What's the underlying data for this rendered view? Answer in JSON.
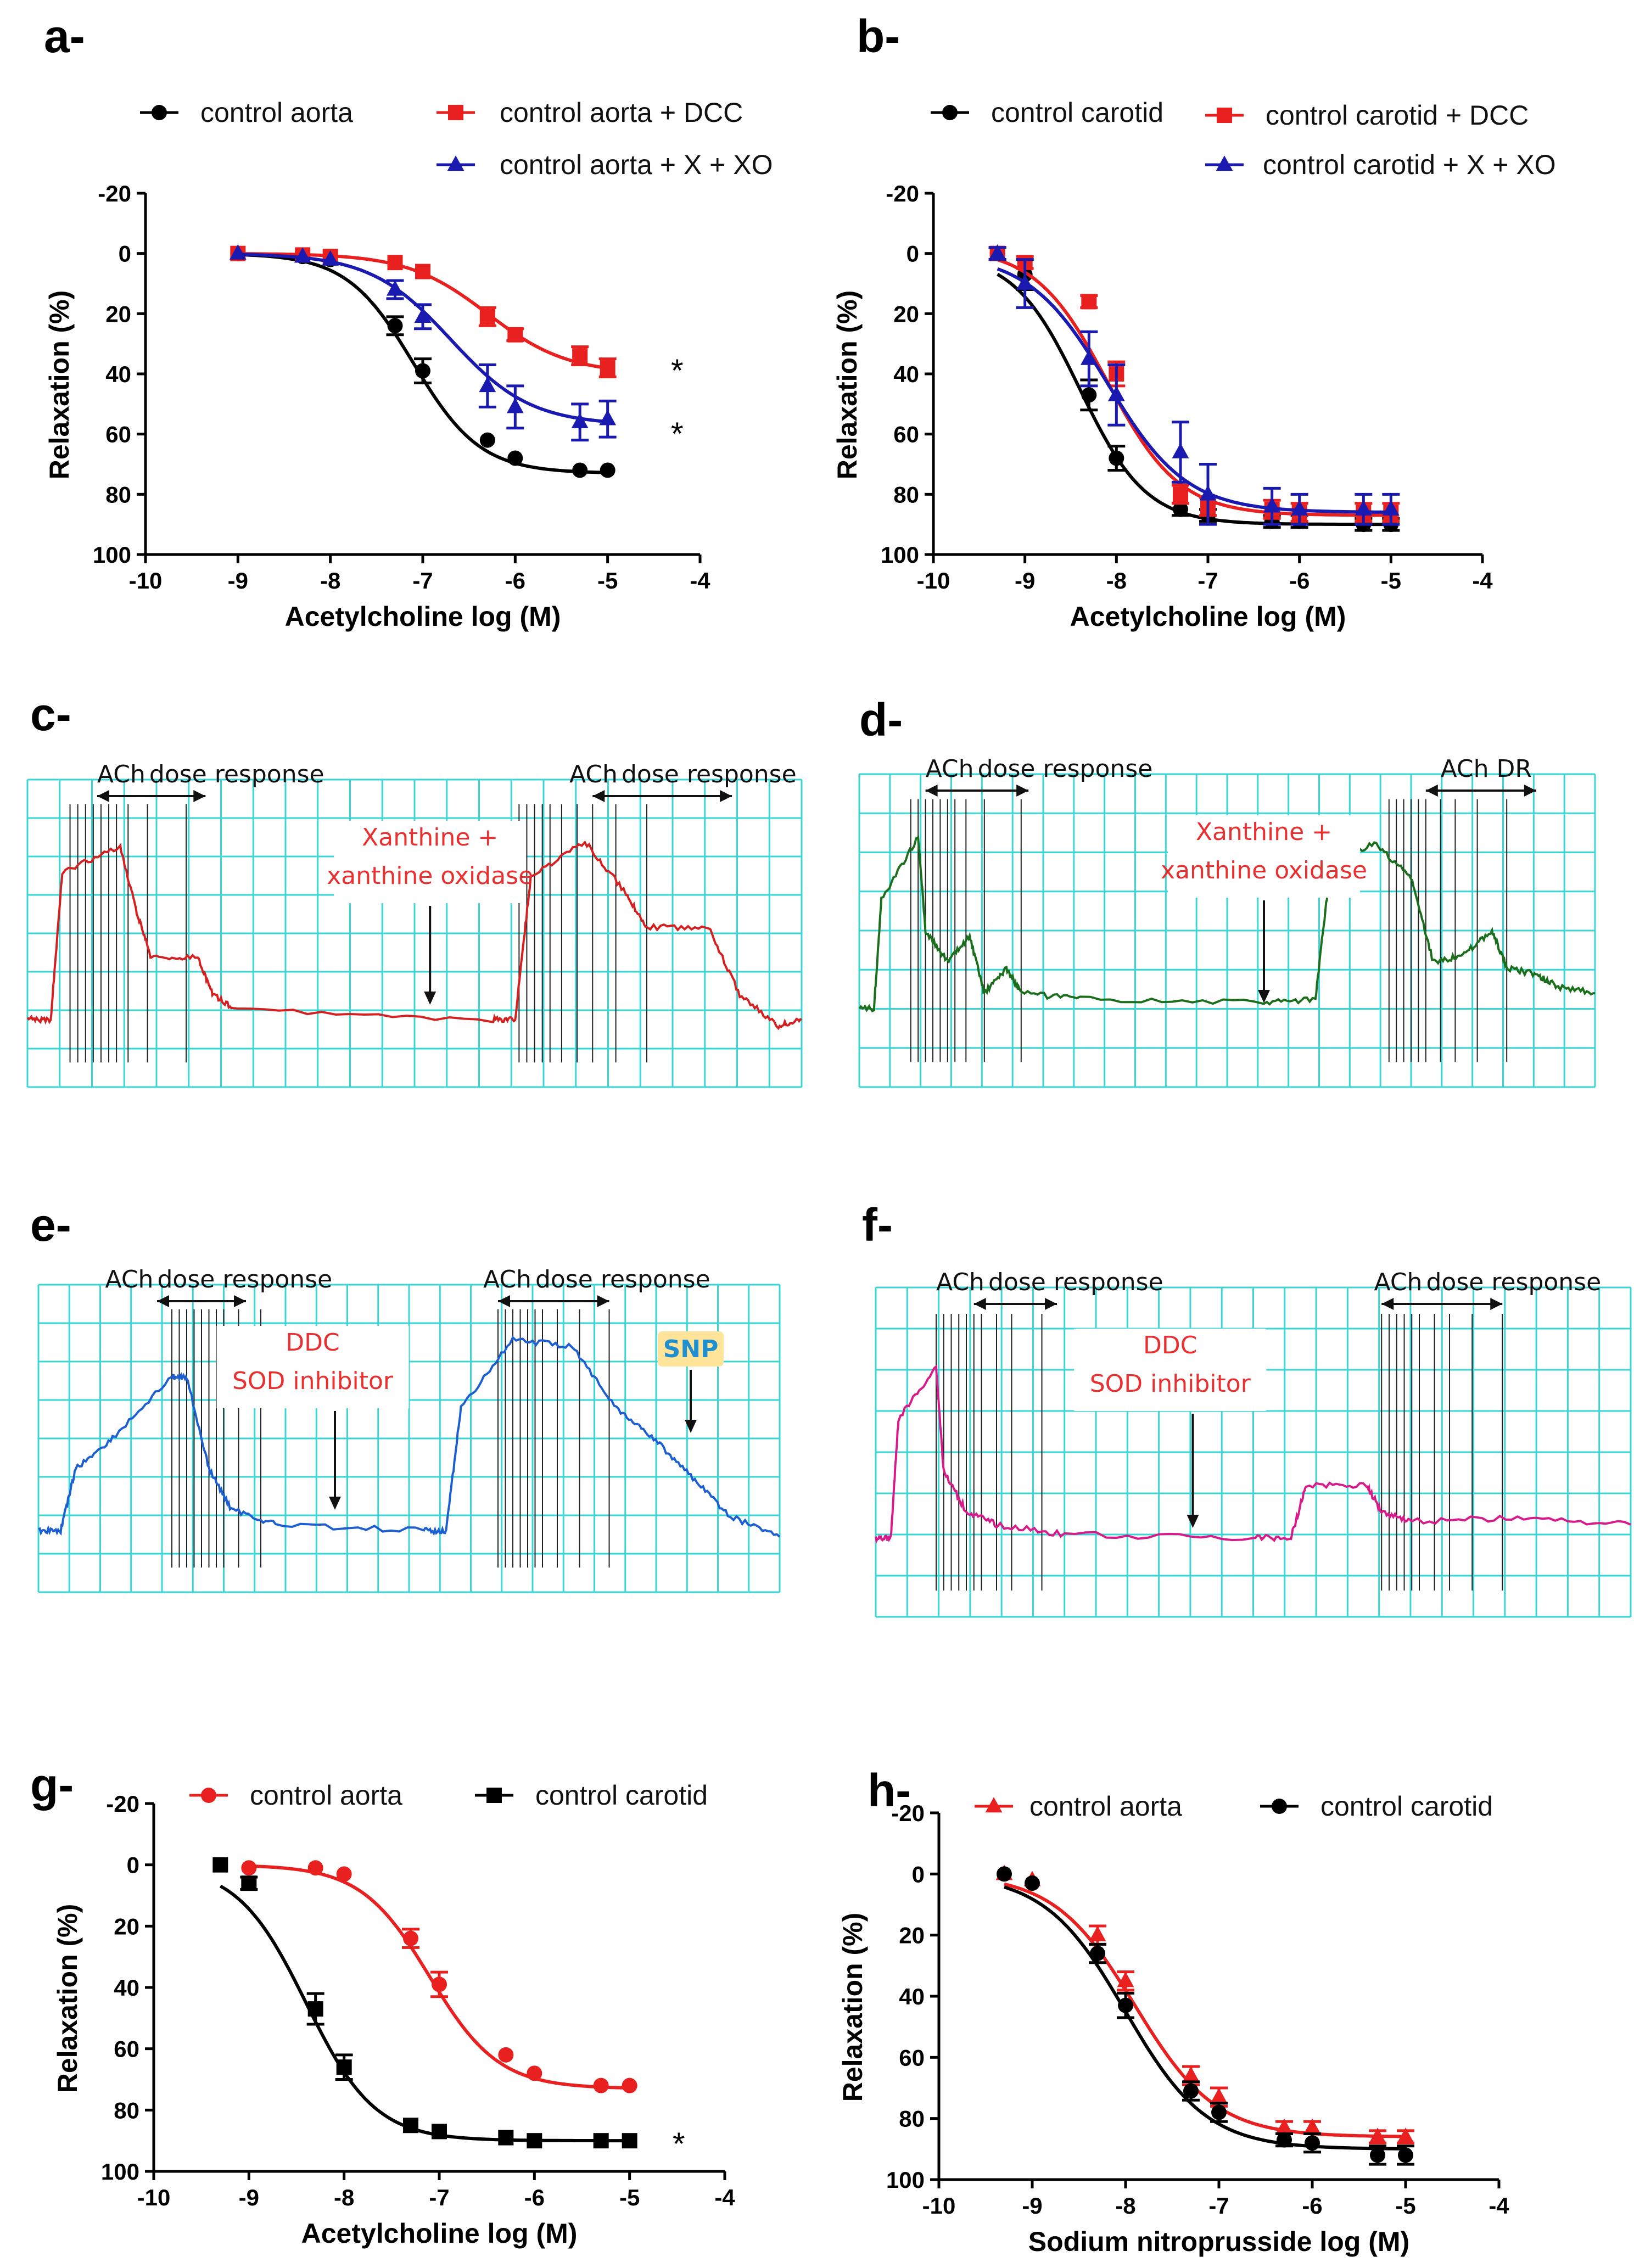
{
  "panels": {
    "a": "a-",
    "b": "b-",
    "c": "c-",
    "d": "d-",
    "e": "e-",
    "f": "f-",
    "g": "g-",
    "h": "h-"
  },
  "chart_data": [
    {
      "id": "a",
      "type": "line",
      "xlabel": "Acetylcholine log (M)",
      "ylabel": "Relaxation (%)",
      "xlim": [
        -10,
        -4
      ],
      "ylim": [
        -20,
        100
      ],
      "y_inverted": true,
      "xticks": [
        "-10",
        "-9",
        "-8",
        "-7",
        "-6",
        "-5",
        "-4"
      ],
      "yticks": [
        "-20",
        "0",
        "20",
        "40",
        "60",
        "80",
        "100"
      ],
      "legend": "top",
      "series": [
        {
          "name": "control aorta",
          "color": "#000000",
          "marker": "circle",
          "x": [
            -9,
            -8.3,
            -8,
            -7.3,
            -7,
            -6.3,
            -6,
            -5.3,
            -5
          ],
          "y": [
            0,
            1,
            2,
            24,
            39,
            62,
            68,
            72,
            72
          ],
          "err": [
            1,
            1,
            1,
            3,
            4,
            1,
            1,
            1,
            1
          ],
          "fit": {
            "bottom": 0,
            "top": 73,
            "logec50": -7.1,
            "hill": 1.2
          }
        },
        {
          "name": "control aorta + DCC",
          "color": "#e8201f",
          "marker": "square",
          "x": [
            -9,
            -8.3,
            -8,
            -7.3,
            -7,
            -6.3,
            -6,
            -5.3,
            -5
          ],
          "y": [
            0,
            0.5,
            1,
            3,
            6,
            21,
            27,
            34,
            38
          ],
          "err": [
            1,
            1,
            1,
            1,
            1,
            3,
            2,
            3,
            3
          ],
          "fit": {
            "bottom": 0,
            "top": 40,
            "logec50": -6.3,
            "hill": 1.0
          }
        },
        {
          "name": "control aorta +  X + XO",
          "color": "#1a1ab0",
          "marker": "triangle",
          "x": [
            -9,
            -8.3,
            -8,
            -7.3,
            -7,
            -6.3,
            -6,
            -5.3,
            -5
          ],
          "y": [
            0,
            1,
            2,
            12,
            21,
            44,
            51,
            56,
            55
          ],
          "err": [
            1,
            1,
            1,
            3,
            4,
            7,
            7,
            6,
            6
          ],
          "fit": {
            "bottom": 0,
            "top": 57,
            "logec50": -6.7,
            "hill": 1.0
          }
        }
      ],
      "annotations": [
        "*",
        "*"
      ]
    },
    {
      "id": "b",
      "type": "line",
      "xlabel": "Acetylcholine log (M)",
      "ylabel": "Relaxation (%)",
      "xlim": [
        -10,
        -4
      ],
      "ylim": [
        -20,
        100
      ],
      "y_inverted": true,
      "xticks": [
        "-10",
        "-9",
        "-8",
        "-7",
        "-6",
        "-5",
        "-4"
      ],
      "yticks": [
        "-20",
        "0",
        "20",
        "40",
        "60",
        "80",
        "100"
      ],
      "legend": "top",
      "series": [
        {
          "name": "control carotid",
          "color": "#000000",
          "marker": "circle",
          "x": [
            -9.3,
            -9,
            -8.3,
            -8,
            -7.3,
            -7,
            -6.3,
            -6,
            -5.3,
            -5
          ],
          "y": [
            0,
            7,
            47,
            68,
            85,
            87,
            89,
            89,
            90,
            90
          ],
          "err": [
            2,
            5,
            5,
            4,
            2,
            2,
            2,
            2,
            2,
            2
          ],
          "fit": {
            "bottom": 0,
            "top": 90,
            "logec50": -8.4,
            "hill": 1.2
          }
        },
        {
          "name": "control carotid + DCC",
          "color": "#e8201f",
          "marker": "square",
          "x": [
            -9.3,
            -9,
            -8.3,
            -8,
            -7.3,
            -7,
            -6.3,
            -6,
            -5.3,
            -5
          ],
          "y": [
            0,
            3,
            16,
            40,
            80,
            84,
            85,
            86,
            86,
            86
          ],
          "err": [
            1,
            2,
            2,
            4,
            3,
            3,
            3,
            3,
            3,
            3
          ],
          "fit": {
            "bottom": -2,
            "top": 87,
            "logec50": -8.1,
            "hill": 1.1
          }
        },
        {
          "name": "control carotid + X + XO",
          "color": "#1a1ab0",
          "marker": "triangle",
          "x": [
            -9.3,
            -9,
            -8.3,
            -8,
            -7.3,
            -7,
            -6.3,
            -6,
            -5.3,
            -5
          ],
          "y": [
            0,
            10,
            35,
            47,
            66,
            80,
            84,
            85,
            85,
            85
          ],
          "err": [
            2,
            8,
            9,
            10,
            10,
            10,
            6,
            5,
            5,
            5
          ],
          "fit": {
            "bottom": 0,
            "top": 86,
            "logec50": -8.1,
            "hill": 1.0
          }
        }
      ]
    },
    {
      "id": "g",
      "type": "line",
      "xlabel": "Acetylcholine log (M)",
      "ylabel": "Relaxation (%)",
      "xlim": [
        -10,
        -4
      ],
      "ylim": [
        -20,
        100
      ],
      "y_inverted": true,
      "xticks": [
        "-10",
        "-9",
        "-8",
        "-7",
        "-6",
        "-5",
        "-4"
      ],
      "yticks": [
        "-20",
        "0",
        "20",
        "40",
        "60",
        "80",
        "100"
      ],
      "legend": "top",
      "series": [
        {
          "name": "control aorta",
          "color": "#e8201f",
          "marker": "circle",
          "x": [
            -9,
            -8.3,
            -8,
            -7.3,
            -7,
            -6.3,
            -6,
            -5.3,
            -5
          ],
          "y": [
            1,
            1,
            3,
            24,
            39,
            62,
            68,
            72,
            72
          ],
          "err": [
            1,
            1,
            1,
            3,
            4,
            1,
            1,
            1,
            1
          ],
          "fit": {
            "bottom": 0,
            "top": 73,
            "logec50": -7.1,
            "hill": 1.2
          }
        },
        {
          "name": "control carotid",
          "color": "#000000",
          "marker": "square",
          "x": [
            -9.3,
            -9,
            -8.3,
            -8,
            -7.3,
            -7,
            -6.3,
            -6,
            -5.3,
            -5
          ],
          "y": [
            0,
            6,
            47,
            66,
            85,
            87,
            89,
            90,
            90,
            90
          ],
          "err": [
            1,
            2,
            5,
            4,
            1,
            1,
            1,
            1,
            1,
            1
          ],
          "fit": {
            "bottom": 0,
            "top": 90,
            "logec50": -8.4,
            "hill": 1.2
          }
        }
      ],
      "annotations": [
        "*"
      ]
    },
    {
      "id": "h",
      "type": "line",
      "xlabel": "Sodium nitroprusside log (M)",
      "ylabel": "Relaxation (%)",
      "xlim": [
        -10,
        -4
      ],
      "ylim": [
        -20,
        100
      ],
      "y_inverted": true,
      "xticks": [
        "-10",
        "-9",
        "-8",
        "-7",
        "-6",
        "-5",
        "-4"
      ],
      "yticks": [
        "-20",
        "0",
        "20",
        "40",
        "60",
        "80",
        "100"
      ],
      "legend": "top",
      "series": [
        {
          "name": "control aorta",
          "color": "#e8201f",
          "marker": "triangle",
          "x": [
            -9.3,
            -9,
            -8.3,
            -8,
            -7.3,
            -7,
            -6.3,
            -6,
            -5.3,
            -5
          ],
          "y": [
            0,
            2,
            20,
            35,
            66,
            73,
            83,
            83,
            86,
            86
          ],
          "err": [
            1,
            1,
            3,
            3,
            3,
            3,
            2,
            2,
            2,
            2
          ],
          "fit": {
            "bottom": 0,
            "top": 86,
            "logec50": -7.9,
            "hill": 1.0
          }
        },
        {
          "name": "control carotid",
          "color": "#000000",
          "marker": "circle",
          "x": [
            -9.3,
            -9,
            -8.3,
            -8,
            -7.3,
            -7,
            -6.3,
            -6,
            -5.3,
            -5
          ],
          "y": [
            0,
            3,
            26,
            43,
            71,
            78,
            87,
            88,
            92,
            92
          ],
          "err": [
            1,
            1,
            3,
            4,
            3,
            3,
            2,
            3,
            3,
            3
          ],
          "fit": {
            "bottom": 0,
            "top": 90,
            "logec50": -8.0,
            "hill": 1.0
          }
        }
      ]
    }
  ],
  "traces": {
    "c": {
      "color": "#d42020",
      "ach_left": "ACh",
      "dose_left": "dose response",
      "agent_line1": "Xanthine +",
      "agent_line2": "xanthine oxidase",
      "agent_color": "#e83030",
      "ach_right": "ACh",
      "dose_right": "dose response"
    },
    "d": {
      "color": "#1b6e1b",
      "ach_left": "ACh",
      "dose_left": "dose response",
      "agent_line1": "Xanthine +",
      "agent_line2": "xanthine oxidase",
      "agent_color": "#e83030",
      "ach_right": "ACh DR"
    },
    "e": {
      "color": "#1d5fd0",
      "ach_left": "ACh",
      "dose_left": "dose response",
      "agent_line1": "DDC",
      "agent_line2": "SOD inhibitor",
      "agent_color": "#e83030",
      "ach_right": "ACh",
      "dose_right": "dose response",
      "snp": "SNP",
      "snp_color": "#1f8fd0",
      "snp_bg": "#ffe49a"
    },
    "f": {
      "color": "#d81b8a",
      "ach_left": "ACh",
      "dose_left": "dose response",
      "agent_line1": "DDC",
      "agent_line2": "SOD inhibitor",
      "agent_color": "#e83030",
      "ach_right": "ACh",
      "dose_right": "dose response"
    }
  },
  "colors": {
    "grid": "#3ad6d6",
    "axis": "#000000"
  }
}
